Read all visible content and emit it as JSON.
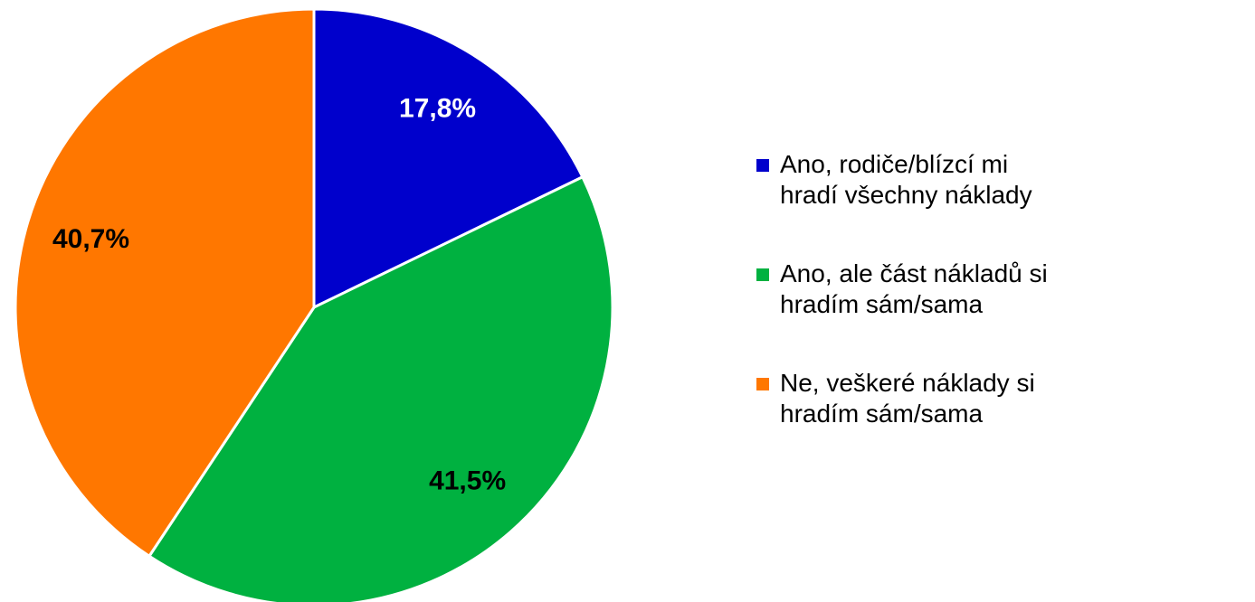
{
  "chart_data": {
    "type": "pie",
    "categories": [
      "Ano, rodiče/blízcí mi hradí všechny náklady",
      "Ano, ale část nákladů si hradím sám/sama",
      "Ne, veškeré náklady si hradím sám/sama"
    ],
    "values": [
      17.8,
      41.5,
      40.7
    ],
    "value_labels": [
      "17,8%",
      "41,5%",
      "40,7%"
    ],
    "colors": [
      "#0000cc",
      "#00b140",
      "#ff7700"
    ],
    "label_colors": [
      "#ffffff",
      "#000000",
      "#000000"
    ],
    "legend": "right"
  }
}
